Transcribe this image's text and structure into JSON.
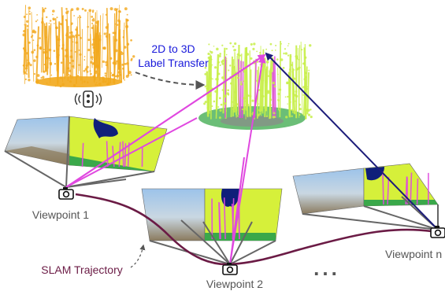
{
  "labels": {
    "transfer_line1": "2D to 3D",
    "transfer_line2": "Label Transfer",
    "viewpoint1": "Viewpoint 1",
    "viewpoint2": "Viewpoint 2",
    "viewpointn": "Viewpoint n",
    "trajectory": "SLAM Trajectory",
    "ellipsis": "..."
  },
  "icons": {
    "camera": "camera-icon",
    "lidar": "lidar-sensor-icon"
  },
  "colors": {
    "transfer_text": "#1a1adb",
    "trajectory": "#6b1b45",
    "projection_magenta": "#e048e0",
    "projection_navy": "#1c1c7a",
    "point_cloud_raw": "#f2a81c",
    "point_cloud_labeled": "#c8ef4a",
    "ground_green": "#3aa84a",
    "label_yellow": "#d6f03a",
    "sky_navy": "#0f1f7a",
    "label_gray": "#555555"
  }
}
